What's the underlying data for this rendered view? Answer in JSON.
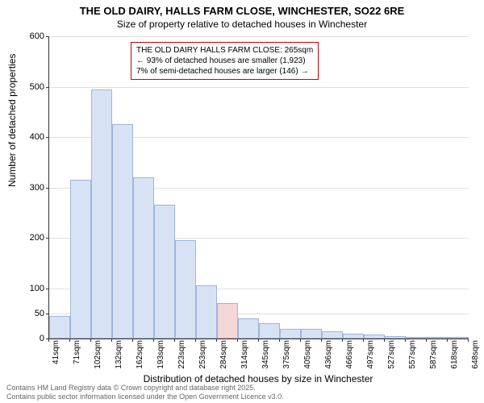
{
  "chart": {
    "type": "histogram",
    "title_line1": "THE OLD DAIRY, HALLS FARM CLOSE, WINCHESTER, SO22 6RE",
    "title_line2": "Size of property relative to detached houses in Winchester",
    "ylabel": "Number of detached properties",
    "xlabel": "Distribution of detached houses by size in Winchester",
    "ylim": [
      0,
      600
    ],
    "yticks": [
      0,
      50,
      100,
      200,
      300,
      400,
      500,
      600
    ],
    "xlim": [
      41,
      648
    ],
    "xtick_step_sqm": 30,
    "xtick_labels": [
      "41sqm",
      "71sqm",
      "102sqm",
      "132sqm",
      "162sqm",
      "193sqm",
      "223sqm",
      "253sqm",
      "284sqm",
      "314sqm",
      "345sqm",
      "375sqm",
      "405sqm",
      "436sqm",
      "466sqm",
      "497sqm",
      "527sqm",
      "557sqm",
      "587sqm",
      "618sqm",
      "648sqm"
    ],
    "bars": [
      {
        "value": 45,
        "highlight": false
      },
      {
        "value": 315,
        "highlight": false
      },
      {
        "value": 495,
        "highlight": false
      },
      {
        "value": 425,
        "highlight": false
      },
      {
        "value": 320,
        "highlight": false
      },
      {
        "value": 265,
        "highlight": false
      },
      {
        "value": 195,
        "highlight": false
      },
      {
        "value": 105,
        "highlight": false
      },
      {
        "value": 70,
        "highlight": true
      },
      {
        "value": 40,
        "highlight": false
      },
      {
        "value": 30,
        "highlight": false
      },
      {
        "value": 20,
        "highlight": false
      },
      {
        "value": 20,
        "highlight": false
      },
      {
        "value": 15,
        "highlight": false
      },
      {
        "value": 10,
        "highlight": false
      },
      {
        "value": 8,
        "highlight": false
      },
      {
        "value": 5,
        "highlight": false
      },
      {
        "value": 3,
        "highlight": false
      },
      {
        "value": 2,
        "highlight": false
      },
      {
        "value": 2,
        "highlight": false
      }
    ],
    "bar_color": "#d7e3f4",
    "bar_border": "#9db6db",
    "highlight_color": "#f5d7d7",
    "highlight_border": "#dca0a0",
    "grid_color": "#e0e0e0",
    "background_color": "#ffffff",
    "annotation": {
      "line1": "THE OLD DAIRY HALLS FARM CLOSE: 265sqm",
      "line2": "← 93% of detached houses are smaller (1,923)",
      "line3": "7% of semi-detached houses are larger (146) →",
      "border_color": "#cc0000"
    },
    "footer_line1": "Contains HM Land Registry data © Crown copyright and database right 2025.",
    "footer_line2": "Contains public sector information licensed under the Open Government Licence v3.0.",
    "title_fontsize": 13,
    "subtitle_fontsize": 12,
    "label_fontsize": 12,
    "tick_fontsize": 11
  }
}
